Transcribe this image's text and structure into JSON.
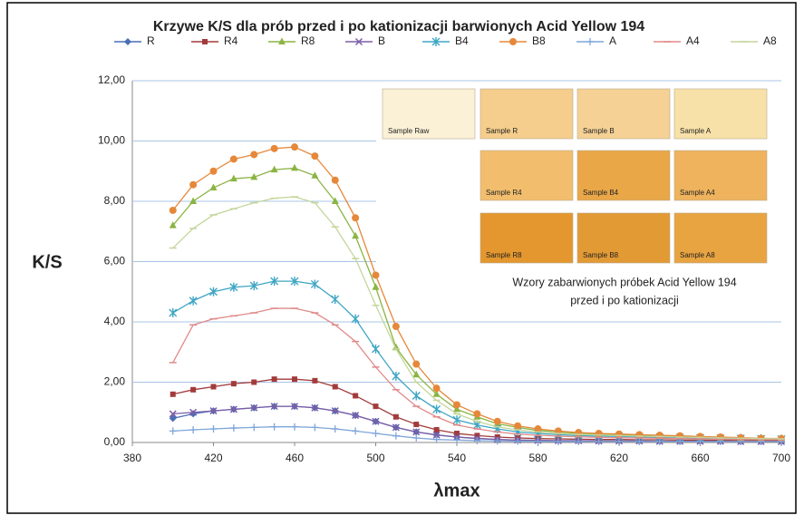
{
  "chart_data": {
    "type": "line",
    "title": "Krzywe K/S dla prób przed i po kationizacji barwionych Acid Yellow 194",
    "y_label": "K/S",
    "x_label": "λmax",
    "x": [
      400,
      410,
      420,
      430,
      440,
      450,
      460,
      470,
      480,
      490,
      500,
      510,
      520,
      530,
      540,
      550,
      560,
      570,
      580,
      590,
      600,
      610,
      620,
      630,
      640,
      650,
      660,
      670,
      680,
      690,
      700
    ],
    "xlim": [
      380,
      700
    ],
    "xticks": [
      380,
      420,
      460,
      500,
      540,
      580,
      620,
      660,
      700
    ],
    "ylim": [
      0,
      12
    ],
    "yticks": [
      {
        "value": 0,
        "label": "0,00"
      },
      {
        "value": 2,
        "label": "2,00"
      },
      {
        "value": 4,
        "label": "4,00"
      },
      {
        "value": 6,
        "label": "6,00"
      },
      {
        "value": 8,
        "label": "8,00"
      },
      {
        "value": 10,
        "label": "10,00"
      },
      {
        "value": 12,
        "label": "12,00"
      }
    ],
    "grid": true,
    "series": [
      {
        "name": "R",
        "color": "#4a6fb5",
        "marker": "diamond",
        "values": [
          0.8,
          0.95,
          1.05,
          1.1,
          1.15,
          1.2,
          1.2,
          1.15,
          1.05,
          0.9,
          0.7,
          0.5,
          0.35,
          0.25,
          0.18,
          0.13,
          0.1,
          0.08,
          0.07,
          0.06,
          0.06,
          0.05,
          0.05,
          0.05,
          0.04,
          0.04,
          0.04,
          0.04,
          0.03,
          0.03,
          0.03
        ]
      },
      {
        "name": "R4",
        "color": "#a33b3b",
        "marker": "square",
        "values": [
          1.6,
          1.75,
          1.85,
          1.95,
          2.0,
          2.1,
          2.1,
          2.05,
          1.85,
          1.55,
          1.2,
          0.85,
          0.6,
          0.42,
          0.3,
          0.23,
          0.18,
          0.15,
          0.13,
          0.12,
          0.11,
          0.1,
          0.1,
          0.09,
          0.09,
          0.08,
          0.08,
          0.07,
          0.07,
          0.07,
          0.06
        ]
      },
      {
        "name": "R8",
        "color": "#8bb443",
        "marker": "triangle",
        "values": [
          7.2,
          8.0,
          8.45,
          8.75,
          8.8,
          9.05,
          9.1,
          8.85,
          8.0,
          6.85,
          5.15,
          3.15,
          2.25,
          1.6,
          1.1,
          0.85,
          0.62,
          0.5,
          0.4,
          0.35,
          0.3,
          0.28,
          0.26,
          0.24,
          0.22,
          0.2,
          0.18,
          0.17,
          0.15,
          0.13,
          0.12
        ]
      },
      {
        "name": "B",
        "color": "#7b5ea7",
        "marker": "x",
        "values": [
          0.95,
          1.0,
          1.05,
          1.1,
          1.15,
          1.2,
          1.2,
          1.15,
          1.05,
          0.9,
          0.7,
          0.5,
          0.35,
          0.25,
          0.18,
          0.14,
          0.1,
          0.08,
          0.07,
          0.06,
          0.06,
          0.05,
          0.05,
          0.05,
          0.04,
          0.04,
          0.04,
          0.04,
          0.03,
          0.03,
          0.03
        ]
      },
      {
        "name": "B4",
        "color": "#3fa6c4",
        "marker": "star",
        "values": [
          4.3,
          4.7,
          5.0,
          5.15,
          5.2,
          5.35,
          5.35,
          5.25,
          4.75,
          4.1,
          3.1,
          2.2,
          1.55,
          1.1,
          0.75,
          0.58,
          0.45,
          0.35,
          0.3,
          0.26,
          0.23,
          0.21,
          0.2,
          0.18,
          0.17,
          0.16,
          0.15,
          0.14,
          0.13,
          0.12,
          0.11
        ]
      },
      {
        "name": "B8",
        "color": "#e6883a",
        "marker": "circle",
        "values": [
          7.7,
          8.55,
          9.0,
          9.4,
          9.55,
          9.75,
          9.8,
          9.5,
          8.7,
          7.45,
          5.55,
          3.85,
          2.6,
          1.8,
          1.25,
          0.95,
          0.7,
          0.55,
          0.45,
          0.38,
          0.33,
          0.3,
          0.28,
          0.26,
          0.24,
          0.22,
          0.2,
          0.18,
          0.16,
          0.14,
          0.13
        ]
      },
      {
        "name": "A",
        "color": "#7fa6d9",
        "marker": "plus",
        "values": [
          0.38,
          0.42,
          0.45,
          0.48,
          0.5,
          0.52,
          0.52,
          0.5,
          0.45,
          0.38,
          0.3,
          0.22,
          0.15,
          0.1,
          0.08,
          0.06,
          0.05,
          0.04,
          0.04,
          0.03,
          0.03,
          0.03,
          0.03,
          0.03,
          0.03,
          0.03,
          0.03,
          0.03,
          0.03,
          0.03,
          0.03
        ]
      },
      {
        "name": "A4",
        "color": "#e08a8a",
        "marker": "dash",
        "values": [
          2.65,
          3.9,
          4.1,
          4.2,
          4.3,
          4.45,
          4.45,
          4.3,
          3.9,
          3.35,
          2.5,
          1.75,
          1.2,
          0.85,
          0.58,
          0.45,
          0.35,
          0.28,
          0.24,
          0.21,
          0.19,
          0.17,
          0.16,
          0.15,
          0.14,
          0.13,
          0.12,
          0.11,
          0.1,
          0.1,
          0.09
        ]
      },
      {
        "name": "A8",
        "color": "#c3d69b",
        "marker": "dash",
        "values": [
          6.45,
          7.1,
          7.55,
          7.75,
          7.95,
          8.1,
          8.15,
          7.95,
          7.15,
          6.1,
          4.55,
          3.1,
          2.0,
          1.4,
          0.95,
          0.7,
          0.52,
          0.42,
          0.35,
          0.3,
          0.27,
          0.25,
          0.23,
          0.21,
          0.2,
          0.18,
          0.17,
          0.15,
          0.14,
          0.13,
          0.12
        ]
      }
    ],
    "swatches": [
      [
        {
          "label": "Sample Raw",
          "color": "#fbf1d6"
        },
        {
          "label": "Sample R",
          "color": "#f5cd8c"
        },
        {
          "label": "Sample B",
          "color": "#f5d196"
        },
        {
          "label": "Sample A",
          "color": "#f8e1a8"
        }
      ],
      [
        {
          "label": "Sample R4",
          "color": "#f2be6e"
        },
        {
          "label": "Sample B4",
          "color": "#e9a748"
        },
        {
          "label": "Sample A4",
          "color": "#eeb35c"
        }
      ],
      [
        {
          "label": "Sample R8",
          "color": "#e4972e"
        },
        {
          "label": "Sample B8",
          "color": "#e29a35"
        },
        {
          "label": "Sample A8",
          "color": "#e8a441"
        }
      ]
    ],
    "annotation": [
      "Wzory zabarwionych próbek Acid Yellow 194",
      "przed i po kationizacji"
    ]
  }
}
